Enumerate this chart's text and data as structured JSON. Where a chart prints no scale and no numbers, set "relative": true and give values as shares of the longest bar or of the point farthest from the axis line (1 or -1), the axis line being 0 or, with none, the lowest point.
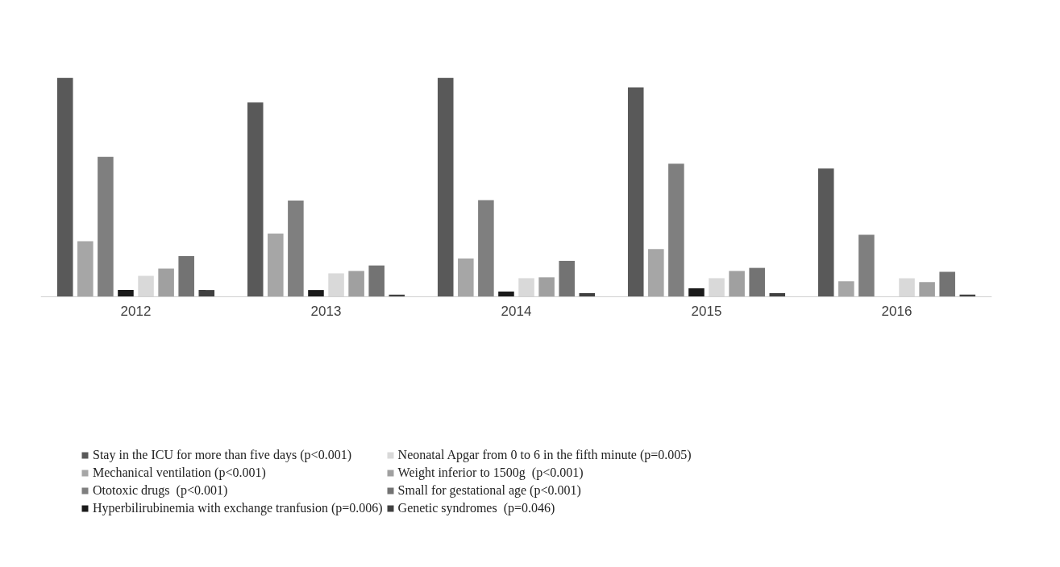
{
  "chart_data": {
    "type": "bar",
    "relative": true,
    "categories": [
      "2012",
      "2013",
      "2014",
      "2015",
      "2016"
    ],
    "legend": "bottom",
    "series": [
      {
        "name": "Stay in the ICU for more than five days (p<0.001)",
        "color": "#595959",
        "values": [
          1.0,
          0.888,
          1.0,
          0.957,
          0.586
        ]
      },
      {
        "name": "Mechanical ventilation (p<0.001)",
        "color": "#a6a6a6",
        "values": [
          0.255,
          0.29,
          0.176,
          0.219,
          0.072
        ]
      },
      {
        "name": "Ototoxic drugs  (p<0.001)",
        "color": "#7f7f7f",
        "values": [
          0.64,
          0.44,
          0.442,
          0.608,
          0.284
        ]
      },
      {
        "name": "Hyperbilirubinemia with exchange tranfusion (p=0.006)",
        "color": "#1a1a1a",
        "values": [
          0.032,
          0.032,
          0.025,
          0.04,
          0
        ]
      },
      {
        "name": "Neonatal Apgar from 0 to 6 in the fifth minute (p=0.005)",
        "color": "#d9d9d9",
        "values": [
          0.097,
          0.108,
          0.086,
          0.086,
          0.086
        ]
      },
      {
        "name": "Weight inferior to 1500g  (p<0.001)",
        "color": "#a0a0a0",
        "values": [
          0.13,
          0.119,
          0.09,
          0.119,
          0.068
        ]
      },
      {
        "name": "Small for gestational age (p<0.001)",
        "color": "#737373",
        "values": [
          0.187,
          0.144,
          0.165,
          0.133,
          0.115
        ]
      },
      {
        "name": "Genetic syndromes  (p=0.046)",
        "color": "#404040",
        "values": [
          0.032,
          0.011,
          0.018,
          0.018,
          0.011
        ]
      }
    ]
  }
}
